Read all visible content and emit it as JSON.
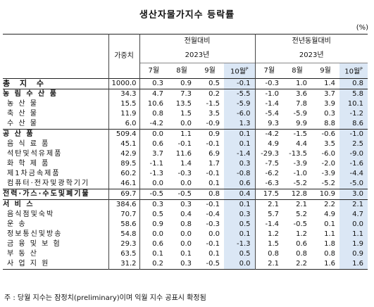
{
  "title": "생산자물가지수 등락률",
  "unit": "(%)",
  "header": {
    "weight": "가중치",
    "mom": "전월대비",
    "yoy": "전년동월대비",
    "year": "2023년",
    "months": [
      "7월",
      "8월",
      "9월",
      "10월"
    ],
    "prelim": "P"
  },
  "rows": [
    {
      "label": "총 지 수",
      "weight": "1000.0",
      "mom": [
        "0.3",
        "0.9",
        "0.5",
        "-0.1"
      ],
      "yoy": [
        "-0.3",
        "1.0",
        "1.4",
        "0.8"
      ],
      "level": "total"
    },
    {
      "label": "농 림 수 산 품",
      "weight": "34.3",
      "mom": [
        "4.7",
        "7.3",
        "0.2",
        "-5.5"
      ],
      "yoy": [
        "-1.0",
        "3.6",
        "3.7",
        "5.8"
      ],
      "level": "cat"
    },
    {
      "label": "농 산 물",
      "weight": "15.5",
      "mom": [
        "10.6",
        "13.5",
        "-1.5",
        "-5.9"
      ],
      "yoy": [
        "-1.4",
        "7.8",
        "3.9",
        "10.1"
      ],
      "level": "sub"
    },
    {
      "label": "축 산 물",
      "weight": "11.9",
      "mom": [
        "0.8",
        "1.5",
        "3.5",
        "-6.0"
      ],
      "yoy": [
        "-5.4",
        "-5.9",
        "0.3",
        "-1.2"
      ],
      "level": "sub"
    },
    {
      "label": "수 산 물",
      "weight": "6.0",
      "mom": [
        "-4.2",
        "0.0",
        "-0.9",
        "1.3"
      ],
      "yoy": [
        "9.3",
        "9.9",
        "8.8",
        "8.6"
      ],
      "level": "sub"
    },
    {
      "label": "공 산 품",
      "weight": "509.4",
      "mom": [
        "0.0",
        "1.1",
        "0.9",
        "0.1"
      ],
      "yoy": [
        "-4.2",
        "-1.5",
        "-0.6",
        "-1.0"
      ],
      "level": "cat"
    },
    {
      "label": "음 식 료 품",
      "weight": "45.1",
      "mom": [
        "0.6",
        "-0.1",
        "-0.1",
        "0.1"
      ],
      "yoy": [
        "4.9",
        "4.4",
        "3.5",
        "2.5"
      ],
      "level": "sub"
    },
    {
      "label": "석탄및석유제품",
      "weight": "42.9",
      "mom": [
        "3.7",
        "11.6",
        "6.9",
        "-1.4"
      ],
      "yoy": [
        "-29.3",
        "-13.5",
        "-6.0",
        "-9.0"
      ],
      "level": "sub"
    },
    {
      "label": "화 학 제 품",
      "weight": "89.5",
      "mom": [
        "-1.1",
        "1.4",
        "1.7",
        "0.3"
      ],
      "yoy": [
        "-7.5",
        "-3.9",
        "-2.0",
        "-1.6"
      ],
      "level": "sub"
    },
    {
      "label": "제1차금속제품",
      "weight": "60.2",
      "mom": [
        "-1.3",
        "-0.3",
        "-0.1",
        "-0.8"
      ],
      "yoy": [
        "-6.2",
        "-1.0",
        "-3.9",
        "-4.4"
      ],
      "level": "sub"
    },
    {
      "label": "컴퓨터·전자및광학기기",
      "weight": "46.1",
      "mom": [
        "0.0",
        "0.0",
        "0.1",
        "0.6"
      ],
      "yoy": [
        "-6.3",
        "-5.2",
        "-5.2",
        "-5.0"
      ],
      "level": "sub"
    },
    {
      "label": "전력·가스·수도및폐기물",
      "weight": "69.7",
      "mom": [
        "-0.5",
        "-0.5",
        "0.8",
        "0.4"
      ],
      "yoy": [
        "17.5",
        "12.8",
        "10.9",
        "3.0"
      ],
      "level": "cat"
    },
    {
      "label": "서 비 스",
      "weight": "384.6",
      "mom": [
        "0.3",
        "0.3",
        "-0.1",
        "0.1"
      ],
      "yoy": [
        "2.1",
        "2.1",
        "2.2",
        "2.1"
      ],
      "level": "cat"
    },
    {
      "label": "음식점및숙박",
      "weight": "70.7",
      "mom": [
        "0.5",
        "0.4",
        "-0.4",
        "0.3"
      ],
      "yoy": [
        "5.7",
        "5.2",
        "4.9",
        "4.7"
      ],
      "level": "sub"
    },
    {
      "label": "운 송",
      "weight": "58.6",
      "mom": [
        "0.9",
        "0.8",
        "-0.3",
        "0.5"
      ],
      "yoy": [
        "-1.4",
        "-0.5",
        "0.1",
        "0.0"
      ],
      "level": "sub"
    },
    {
      "label": "정보통신및방송",
      "weight": "54.8",
      "mom": [
        "0.0",
        "0.0",
        "0.0",
        "0.1"
      ],
      "yoy": [
        "1.2",
        "1.2",
        "1.1",
        "1.1"
      ],
      "level": "sub"
    },
    {
      "label": "금 융 및 보 험",
      "weight": "29.3",
      "mom": [
        "0.6",
        "0.0",
        "-0.1",
        "-1.3"
      ],
      "yoy": [
        "1.5",
        "0.6",
        "1.8",
        "1.9"
      ],
      "level": "sub"
    },
    {
      "label": "부 동 산",
      "weight": "63.5",
      "mom": [
        "0.1",
        "0.1",
        "0.1",
        "0.5"
      ],
      "yoy": [
        "0.8",
        "0.8",
        "0.8",
        "0.9"
      ],
      "level": "sub"
    },
    {
      "label": "사 업 지 원",
      "weight": "31.2",
      "mom": [
        "0.2",
        "0.3",
        "-0.5",
        "0.0"
      ],
      "yoy": [
        "2.1",
        "2.2",
        "1.6",
        "1.6"
      ],
      "level": "sub"
    }
  ],
  "note": "주 : 당월 지수는 잠정치(preliminary)이며 익월 지수 공표시 확정됨"
}
